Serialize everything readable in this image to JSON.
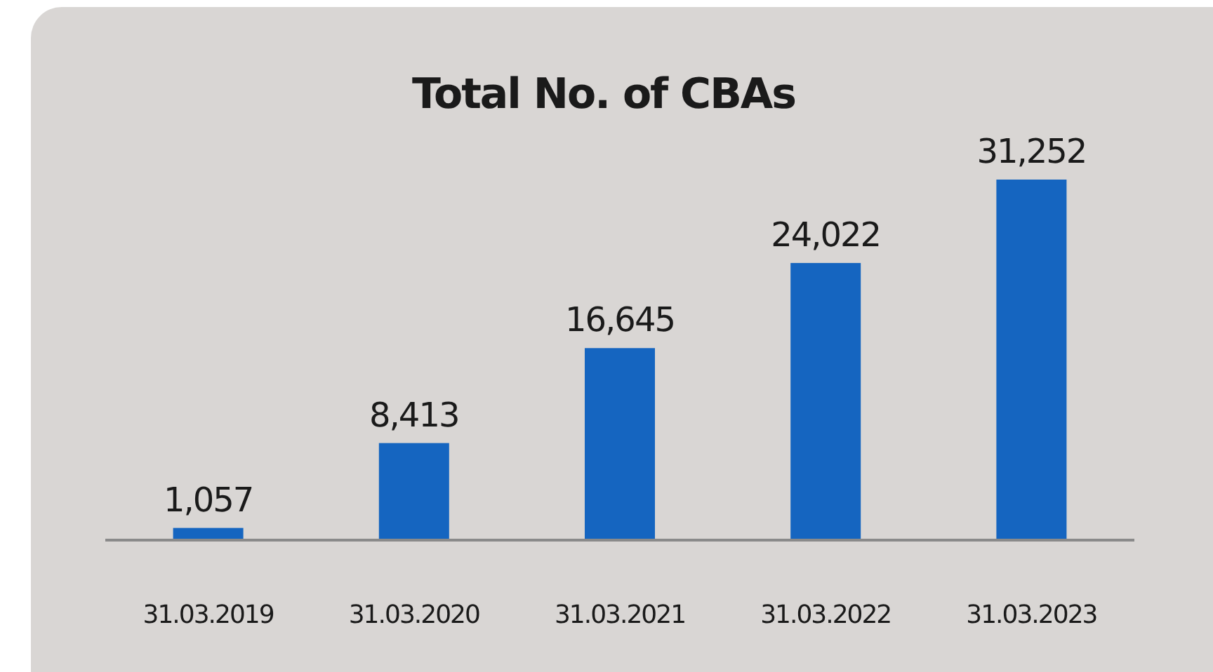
{
  "chart_data": {
    "type": "bar",
    "title": "Total No. of CBAs",
    "categories": [
      "31.03.2019",
      "31.03.2020",
      "31.03.2021",
      "31.03.2022",
      "31.03.2023"
    ],
    "values": [
      1057,
      8413,
      16645,
      24022,
      31252
    ],
    "value_labels": [
      "1,057",
      "8,413",
      "16,645",
      "24,022",
      "31,252"
    ],
    "color": "#1565c0"
  }
}
